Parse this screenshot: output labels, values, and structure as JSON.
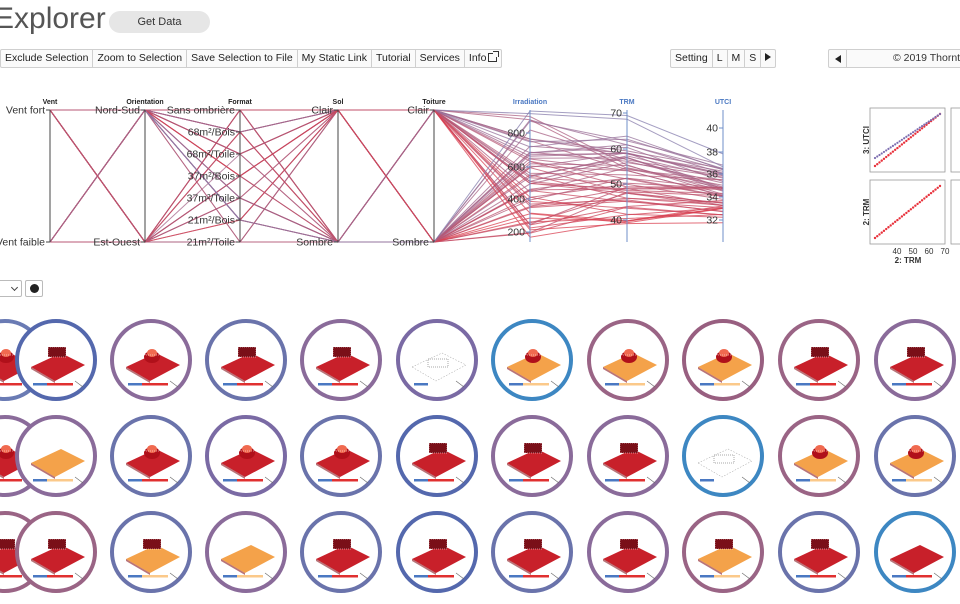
{
  "header": {
    "title": "Explorer",
    "get_data_label": "Get Data"
  },
  "toolbar": {
    "items": [
      "Exclude Selection",
      "Zoom to Selection",
      "Save Selection to File",
      "My Static Link",
      "Tutorial",
      "Services",
      "Info"
    ]
  },
  "view_controls": {
    "setting_label": "Setting",
    "sizes": [
      "L",
      "M",
      "S"
    ]
  },
  "footer_bar": {
    "copyright": "© 2019 Thornt"
  },
  "parcoords": {
    "axes": [
      {
        "name": "Vent",
        "ticks": [
          "Vent fort",
          "Vent faible"
        ]
      },
      {
        "name": "Orientation",
        "ticks": [
          "Nord-Sud",
          "Est-Ouest"
        ]
      },
      {
        "name": "Format",
        "ticks": [
          "Sans ombrière",
          "68m²/Bois",
          "68m²/Toile",
          "37m²/Bois",
          "37m²/Toile",
          "21m²/Bois",
          "21m²/Toile"
        ]
      },
      {
        "name": "Sol",
        "ticks": [
          "Clair",
          "Sombre"
        ]
      },
      {
        "name": "Toiture",
        "ticks": [
          "Clair",
          "Sombre"
        ]
      },
      {
        "name": "Irradiation",
        "ticks": [
          "800",
          "600",
          "400",
          "200"
        ]
      },
      {
        "name": "TRM",
        "ticks": [
          "70",
          "60",
          "50",
          "40"
        ]
      },
      {
        "name": "UTCI",
        "ticks": [
          "40",
          "38",
          "36",
          "34",
          "32"
        ]
      }
    ],
    "colors": {
      "low": "#e8323c",
      "high": "#6f8fc8",
      "axis": "#444444"
    }
  },
  "scatter": {
    "y_labels": [
      "3: UTCI",
      "2: TRM"
    ],
    "x_label": "2: TRM",
    "x_ticks": [
      "40",
      "50",
      "60",
      "70"
    ]
  },
  "dropdown": {
    "value": ""
  },
  "grid": {
    "rows": [
      [
        "#6a7bb4",
        "#5468ad",
        "#8a6b9a",
        "#6a73ab",
        "#8a6b9a",
        "#7a6aa4",
        "#3d87c2",
        "#9a6485",
        "#985f80",
        "#9a6485",
        "#8a6b9a"
      ],
      [
        "#8a6b9a",
        "#8a6b9a",
        "#6a73ab",
        "#7a6aa4",
        "#6a73ab",
        "#5468ad",
        "#8a6b9a",
        "#8a6b9a",
        "#3d87c2",
        "#9a6485",
        "#6a73ab"
      ],
      [
        "#9a6485",
        "#9a6485",
        "#6a73ab",
        "#8a6b9a",
        "#6a73ab",
        "#5468ad",
        "#6a73ab",
        "#8a6b9a",
        "#9a6485",
        "#6a73ab",
        "#3d87c2"
      ]
    ],
    "tiles": [
      [
        "red-peak",
        "red-box",
        "red-peak",
        "red-box",
        "red-box",
        "flat-light",
        "orange-peak",
        "orange-peak",
        "orange-peak",
        "red-box",
        "red-box"
      ],
      [
        "red-peak",
        "orange-flat",
        "red-peak",
        "red-peak",
        "red-peak",
        "red-box",
        "red-box",
        "red-box",
        "flat-light",
        "orange-peak",
        "orange-peak"
      ],
      [
        "red-box",
        "red-box",
        "orange-box",
        "orange-flat",
        "red-box",
        "red-box",
        "red-box",
        "red-box",
        "orange-box",
        "red-box",
        "red-flat"
      ]
    ]
  }
}
